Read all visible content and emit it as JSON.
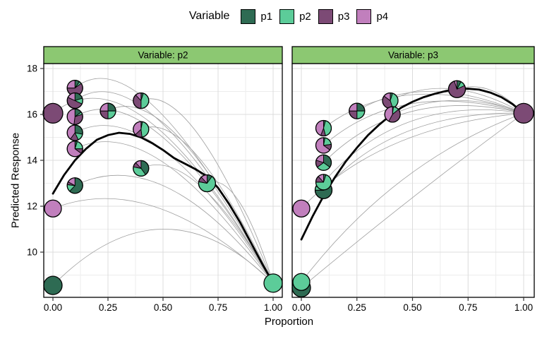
{
  "legend": {
    "title": "Variable",
    "items": [
      {
        "label": "p1",
        "color": "#2E6B53"
      },
      {
        "label": "p2",
        "color": "#5CCC99"
      },
      {
        "label": "p3",
        "color": "#7C4A75"
      },
      {
        "label": "p4",
        "color": "#C17FBD"
      }
    ]
  },
  "colors": {
    "strip_bg": "#8CC872",
    "strip_border": "#000000",
    "panel_border": "#000000",
    "grid_major": "#DCDCDC",
    "grid_minor": "#EDEDED",
    "thin_curve": "#9E9E9E",
    "thick_curve": "#000000",
    "tick": "#333333",
    "text": "#000000",
    "background": "#FFFFFF"
  },
  "chart_data": {
    "type": "scatter",
    "title": "",
    "xlabel": "Proportion",
    "ylabel": "Predicted Response",
    "xlim": [
      -0.042,
      1.042
    ],
    "ylim": [
      8.0,
      18.2
    ],
    "x_ticks": {
      "values": [
        0,
        0.25,
        0.5,
        0.75,
        1
      ],
      "labels": [
        "0.00",
        "0.25",
        "0.50",
        "0.75",
        "1.00"
      ]
    },
    "y_ticks": {
      "values": [
        10,
        12,
        14,
        16,
        18
      ],
      "labels": [
        "10",
        "12",
        "14",
        "16",
        "18"
      ]
    },
    "x_minor": [
      0.125,
      0.375,
      0.625,
      0.875
    ],
    "y_minor": [
      9,
      11,
      13,
      15,
      17
    ],
    "legend_position": "top",
    "grid": true,
    "mix_order": [
      "p1",
      "p2",
      "p3",
      "p4"
    ],
    "facets": [
      {
        "label": "Variable: p2",
        "points": [
          {
            "x": 0,
            "y": 16.05,
            "r": 14,
            "mix": [
              0,
              0,
              1,
              0
            ]
          },
          {
            "x": 0,
            "y": 11.9,
            "r": 12,
            "mix": [
              0,
              0,
              0,
              1
            ]
          },
          {
            "x": 0,
            "y": 8.55,
            "r": 13,
            "mix": [
              1,
              0,
              0,
              0
            ]
          },
          {
            "x": 1,
            "y": 8.65,
            "r": 13,
            "mix": [
              0,
              1,
              0,
              0
            ]
          },
          {
            "x": 0.1,
            "y": 17.15,
            "r": 11,
            "mix": [
              0.1,
              0.05,
              0.6,
              0.25
            ]
          },
          {
            "x": 0.1,
            "y": 16.6,
            "r": 11,
            "mix": [
              0.2,
              0.12,
              0.5,
              0.18
            ]
          },
          {
            "x": 0.1,
            "y": 15.9,
            "r": 11,
            "mix": [
              0.15,
              0.05,
              0.32,
              0.48
            ]
          },
          {
            "x": 0.1,
            "y": 15.2,
            "r": 11,
            "mix": [
              0.28,
              0.15,
              0.17,
              0.4
            ]
          },
          {
            "x": 0.1,
            "y": 14.5,
            "r": 11,
            "mix": [
              0.05,
              0.2,
              0.1,
              0.65
            ]
          },
          {
            "x": 0.1,
            "y": 12.9,
            "r": 11,
            "mix": [
              0.62,
              0.15,
              0.06,
              0.17
            ]
          },
          {
            "x": 0.25,
            "y": 16.15,
            "r": 11,
            "mix": [
              0.25,
              0.25,
              0.25,
              0.25
            ]
          },
          {
            "x": 0.4,
            "y": 16.6,
            "r": 11,
            "mix": [
              0.05,
              0.45,
              0.38,
              0.12
            ]
          },
          {
            "x": 0.4,
            "y": 15.35,
            "r": 11,
            "mix": [
              0.03,
              0.45,
              0.15,
              0.37
            ]
          },
          {
            "x": 0.4,
            "y": 13.65,
            "r": 11,
            "mix": [
              0.4,
              0.38,
              0.1,
              0.12
            ]
          },
          {
            "x": 0.7,
            "y": 13.0,
            "r": 12,
            "mix": [
              0.1,
              0.68,
              0.1,
              0.12
            ]
          }
        ],
        "thick_curve": [
          [
            0,
            12.55
          ],
          [
            0.05,
            13.35
          ],
          [
            0.1,
            14.0
          ],
          [
            0.15,
            14.5
          ],
          [
            0.2,
            14.9
          ],
          [
            0.25,
            15.1
          ],
          [
            0.3,
            15.2
          ],
          [
            0.35,
            15.15
          ],
          [
            0.4,
            15.0
          ],
          [
            0.45,
            14.75
          ],
          [
            0.5,
            14.45
          ],
          [
            0.55,
            14.1
          ],
          [
            0.6,
            13.85
          ],
          [
            0.65,
            13.6
          ],
          [
            0.7,
            13.3
          ],
          [
            0.75,
            12.8
          ],
          [
            0.8,
            12.1
          ],
          [
            0.85,
            11.3
          ],
          [
            0.9,
            10.4
          ],
          [
            0.95,
            9.5
          ],
          [
            1,
            8.65
          ]
        ],
        "thin_curves": [
          [
            0,
            16.05,
            0.38,
            19.0,
            1,
            8.65
          ],
          [
            0.1,
            17.15,
            0.4,
            19.5,
            1,
            8.65
          ],
          [
            0.1,
            16.6,
            0.42,
            18.8,
            1,
            8.65
          ],
          [
            0.1,
            15.9,
            0.44,
            17.8,
            1,
            8.65
          ],
          [
            0.1,
            15.2,
            0.45,
            17.0,
            1,
            8.65
          ],
          [
            0.1,
            14.5,
            0.46,
            16.2,
            1,
            8.65
          ],
          [
            0.1,
            12.9,
            0.5,
            14.8,
            1,
            8.65
          ],
          [
            0,
            11.9,
            0.45,
            13.6,
            1,
            8.65
          ],
          [
            0,
            8.55,
            0.5,
            13.4,
            1,
            8.65
          ],
          [
            0.25,
            16.15,
            0.52,
            17.6,
            1,
            8.65
          ],
          [
            0.4,
            16.6,
            0.63,
            17.5,
            1,
            8.65
          ],
          [
            0.4,
            15.35,
            0.62,
            16.3,
            1,
            8.65
          ],
          [
            0.4,
            13.65,
            0.63,
            14.7,
            1,
            8.65
          ],
          [
            0.7,
            13.0,
            0.84,
            13.6,
            1,
            8.65
          ]
        ]
      },
      {
        "label": "Variable: p3",
        "points": [
          {
            "x": 0,
            "y": 8.45,
            "r": 13,
            "mix": [
              1,
              0,
              0,
              0
            ]
          },
          {
            "x": 0,
            "y": 8.7,
            "r": 12,
            "mix": [
              0,
              1,
              0,
              0
            ]
          },
          {
            "x": 0,
            "y": 11.9,
            "r": 12,
            "mix": [
              0,
              0,
              0,
              1
            ]
          },
          {
            "x": 0.1,
            "y": 13.9,
            "r": 11,
            "mix": [
              0.35,
              0.3,
              0.15,
              0.2
            ]
          },
          {
            "x": 0.1,
            "y": 14.65,
            "r": 11,
            "mix": [
              0.03,
              0.2,
              0.12,
              0.65
            ]
          },
          {
            "x": 0.1,
            "y": 15.4,
            "r": 11,
            "mix": [
              0.04,
              0.42,
              0.1,
              0.44
            ]
          },
          {
            "x": 0.1,
            "y": 12.7,
            "r": 12,
            "mix": [
              0.75,
              0.08,
              0.1,
              0.07
            ]
          },
          {
            "x": 0.1,
            "y": 13.05,
            "r": 11,
            "mix": [
              0.05,
              0.7,
              0.13,
              0.12
            ]
          },
          {
            "x": 0.25,
            "y": 16.15,
            "r": 11,
            "mix": [
              0.25,
              0.25,
              0.25,
              0.25
            ]
          },
          {
            "x": 0.4,
            "y": 16.6,
            "r": 11,
            "mix": [
              0.05,
              0.4,
              0.4,
              0.15
            ]
          },
          {
            "x": 0.41,
            "y": 16.0,
            "r": 11,
            "mix": [
              0.02,
              0.12,
              0.44,
              0.42
            ]
          },
          {
            "x": 0.7,
            "y": 17.1,
            "r": 12,
            "mix": [
              0.08,
              0.1,
              0.77,
              0.05
            ]
          },
          {
            "x": 1,
            "y": 16.05,
            "r": 14,
            "mix": [
              0,
              0,
              1,
              0
            ]
          }
        ],
        "thick_curve": [
          [
            0,
            10.55
          ],
          [
            0.05,
            11.55
          ],
          [
            0.1,
            12.45
          ],
          [
            0.15,
            13.25
          ],
          [
            0.2,
            13.95
          ],
          [
            0.25,
            14.55
          ],
          [
            0.3,
            15.1
          ],
          [
            0.35,
            15.55
          ],
          [
            0.4,
            15.95
          ],
          [
            0.45,
            16.3
          ],
          [
            0.5,
            16.55
          ],
          [
            0.55,
            16.75
          ],
          [
            0.6,
            16.9
          ],
          [
            0.65,
            17.02
          ],
          [
            0.7,
            17.1
          ],
          [
            0.75,
            17.12
          ],
          [
            0.8,
            17.08
          ],
          [
            0.85,
            16.95
          ],
          [
            0.9,
            16.75
          ],
          [
            0.95,
            16.45
          ],
          [
            1,
            16.05
          ]
        ],
        "thin_curves": [
          [
            0,
            8.45,
            0.5,
            12.5,
            1,
            16.05
          ],
          [
            0,
            8.7,
            0.42,
            14.0,
            1,
            16.05
          ],
          [
            0,
            11.9,
            0.35,
            15.5,
            1,
            16.05
          ],
          [
            0.1,
            12.7,
            0.42,
            16.2,
            1,
            16.05
          ],
          [
            0.1,
            13.05,
            0.45,
            16.9,
            1,
            16.05
          ],
          [
            0.1,
            13.9,
            0.45,
            17.3,
            1,
            16.05
          ],
          [
            0.1,
            14.65,
            0.45,
            17.6,
            1,
            16.05
          ],
          [
            0.1,
            15.4,
            0.45,
            18.0,
            1,
            16.05
          ],
          [
            0.25,
            16.15,
            0.55,
            17.9,
            1,
            16.05
          ],
          [
            0.4,
            16.6,
            0.66,
            17.9,
            1,
            16.05
          ],
          [
            0.41,
            16.0,
            0.68,
            17.2,
            1,
            16.05
          ],
          [
            0.7,
            17.1,
            0.85,
            17.55,
            1,
            16.05
          ]
        ]
      }
    ]
  }
}
